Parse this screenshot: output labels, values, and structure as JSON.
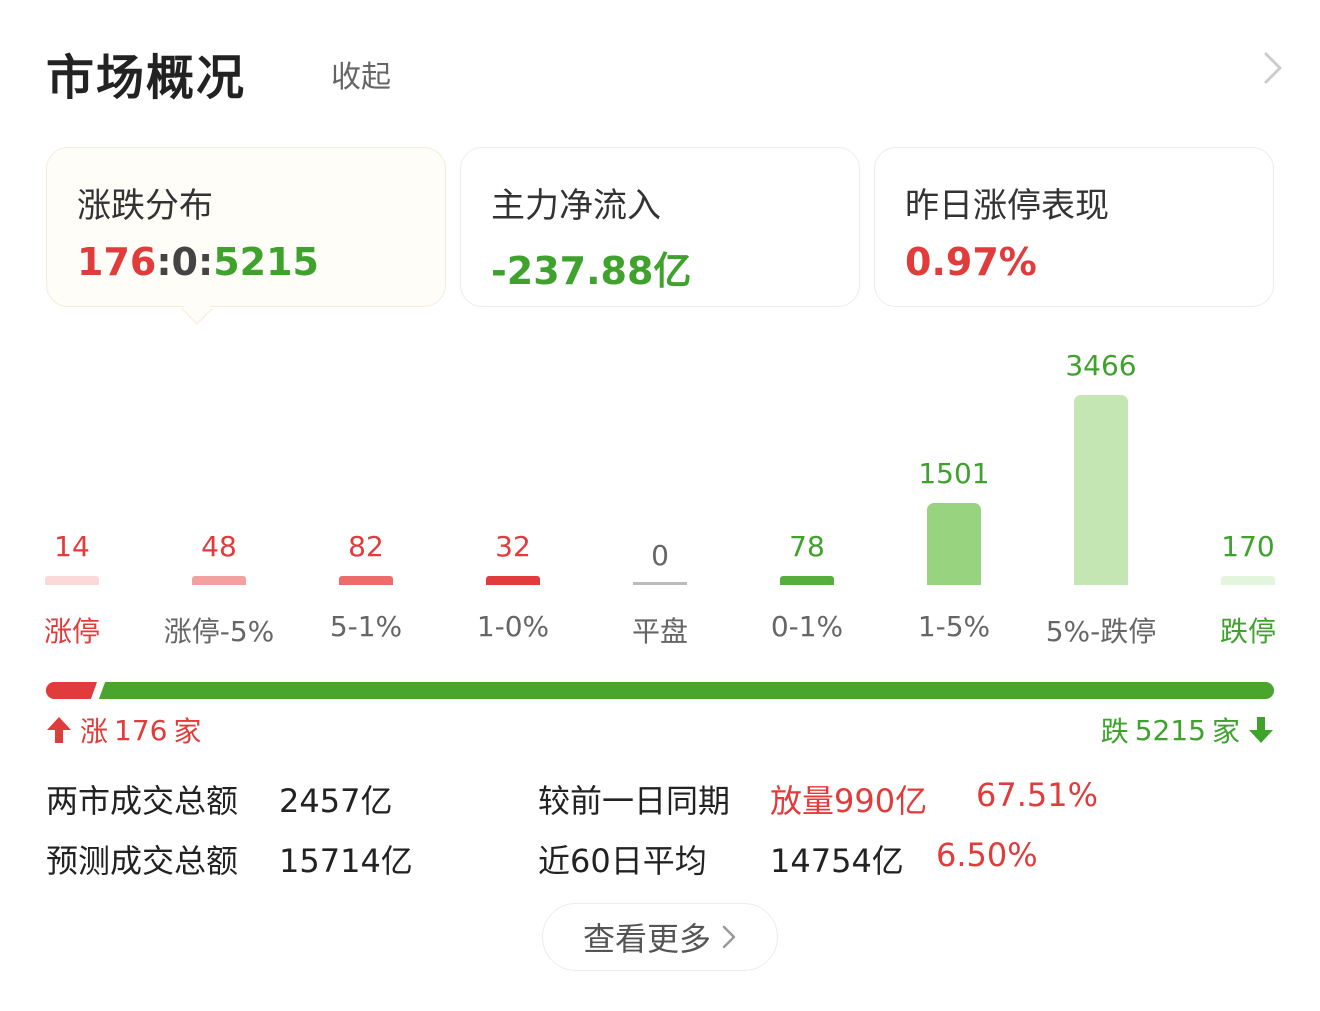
{
  "header": {
    "title": "市场概况",
    "collapse_label": "收起"
  },
  "cards": [
    {
      "label": "涨跌分布",
      "value_up": "176",
      "sep1": ":",
      "value_flat": "0",
      "sep2": ":",
      "value_down": "5215"
    },
    {
      "label": "主力净流入",
      "value": "-237.88亿"
    },
    {
      "label": "昨日涨停表现",
      "value": "0.97%"
    }
  ],
  "chart_data": {
    "type": "bar",
    "categories": [
      "涨停",
      "涨停-5%",
      "5-1%",
      "1-0%",
      "平盘",
      "0-1%",
      "1-5%",
      "5%-跌停",
      "跌停"
    ],
    "values": [
      14,
      48,
      82,
      32,
      0,
      78,
      1501,
      3466,
      170
    ],
    "value_labels": [
      "14",
      "48",
      "82",
      "32",
      "0",
      "78",
      "1501",
      "3466",
      "170"
    ],
    "bar_colors": [
      "#fcd9d9",
      "#f4a0a0",
      "#ee6b6b",
      "#e23b3b",
      "#bbbbbb",
      "#56ae3d",
      "#98d47f",
      "#c3e6b3",
      "#e4f5dd"
    ],
    "value_colors": [
      "#e23b3b",
      "#e23b3b",
      "#e23b3b",
      "#e23b3b",
      "#666666",
      "#3fa22d",
      "#3fa22d",
      "#3fa22d",
      "#3fa22d"
    ],
    "label_colors": [
      "#e23b3b",
      "#666666",
      "#666666",
      "#666666",
      "#666666",
      "#666666",
      "#666666",
      "#666666",
      "#3fa22d"
    ]
  },
  "ratio": {
    "up": 176,
    "down": 5215,
    "up_color": "#e23b3b",
    "down_color": "#4aa52f"
  },
  "up_summary": {
    "prefix": "涨",
    "count": "176",
    "unit": "家"
  },
  "down_summary": {
    "prefix": "跌",
    "count": "5215",
    "unit": "家"
  },
  "stats": {
    "total_label": "两市成交总额",
    "total_value": "2457亿",
    "compare_label": "较前一日同期",
    "compare_value": "放量990亿",
    "compare_pct": "67.51%",
    "forecast_label": "预测成交总额",
    "forecast_value": "15714亿",
    "avg_label": "近60日平均",
    "avg_value": "14754亿",
    "avg_pct": "6.50%"
  },
  "more_button": {
    "label": "查看更多"
  },
  "colors": {
    "up": "#e23b3b",
    "down": "#3fa22d"
  },
  "icons": {
    "header_more": "chevron-right-icon",
    "up": "arrow-up-icon",
    "down": "arrow-down-icon",
    "more": "chevron-right-icon"
  }
}
